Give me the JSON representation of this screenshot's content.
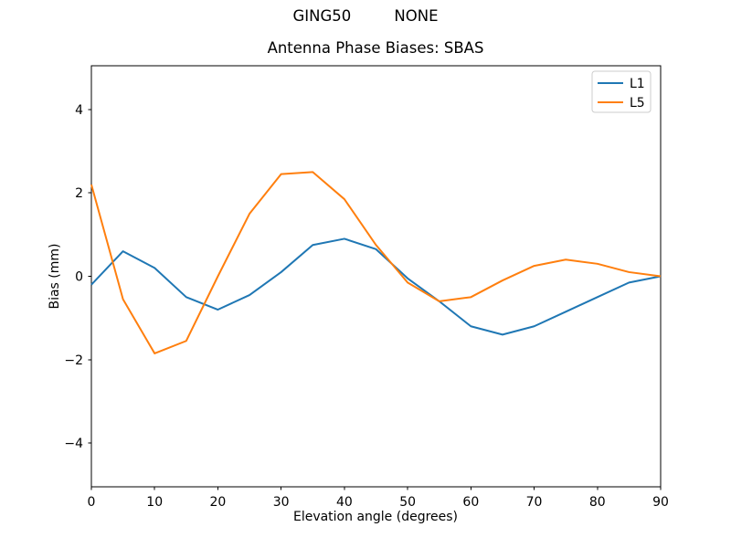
{
  "figure": {
    "suptitle": "GING50         NONE",
    "title": "Antenna Phase Biases: SBAS",
    "background": "#ffffff"
  },
  "chart_data": {
    "type": "line",
    "suptitle": "GING50         NONE",
    "title": "Antenna Phase Biases: SBAS",
    "xlabel": "Elevation angle (degrees)",
    "ylabel": "Bias (mm)",
    "xlim": [
      0,
      90
    ],
    "ylim": [
      -5.05,
      5.05
    ],
    "xticks": [
      0,
      10,
      20,
      30,
      40,
      50,
      60,
      70,
      80,
      90
    ],
    "yticks": [
      -4,
      -2,
      0,
      2,
      4
    ],
    "grid": false,
    "legend_position": "upper right",
    "x": [
      0,
      5,
      10,
      15,
      20,
      25,
      30,
      35,
      40,
      45,
      50,
      55,
      60,
      65,
      70,
      75,
      80,
      85,
      90
    ],
    "series": [
      {
        "name": "L1",
        "color": "#1f77b4",
        "values": [
          -0.2,
          0.6,
          0.2,
          -0.5,
          -0.8,
          -0.45,
          0.1,
          0.75,
          0.9,
          0.65,
          -0.05,
          -0.6,
          -1.2,
          -1.4,
          -1.2,
          -0.85,
          -0.5,
          -0.15,
          0.0
        ]
      },
      {
        "name": "L5",
        "color": "#ff7f0e",
        "values": [
          2.2,
          -0.55,
          -1.85,
          -1.55,
          0.0,
          1.5,
          2.45,
          2.5,
          1.85,
          0.75,
          -0.15,
          -0.6,
          -0.5,
          -0.1,
          0.25,
          0.4,
          0.3,
          0.1,
          0.0
        ]
      }
    ]
  }
}
